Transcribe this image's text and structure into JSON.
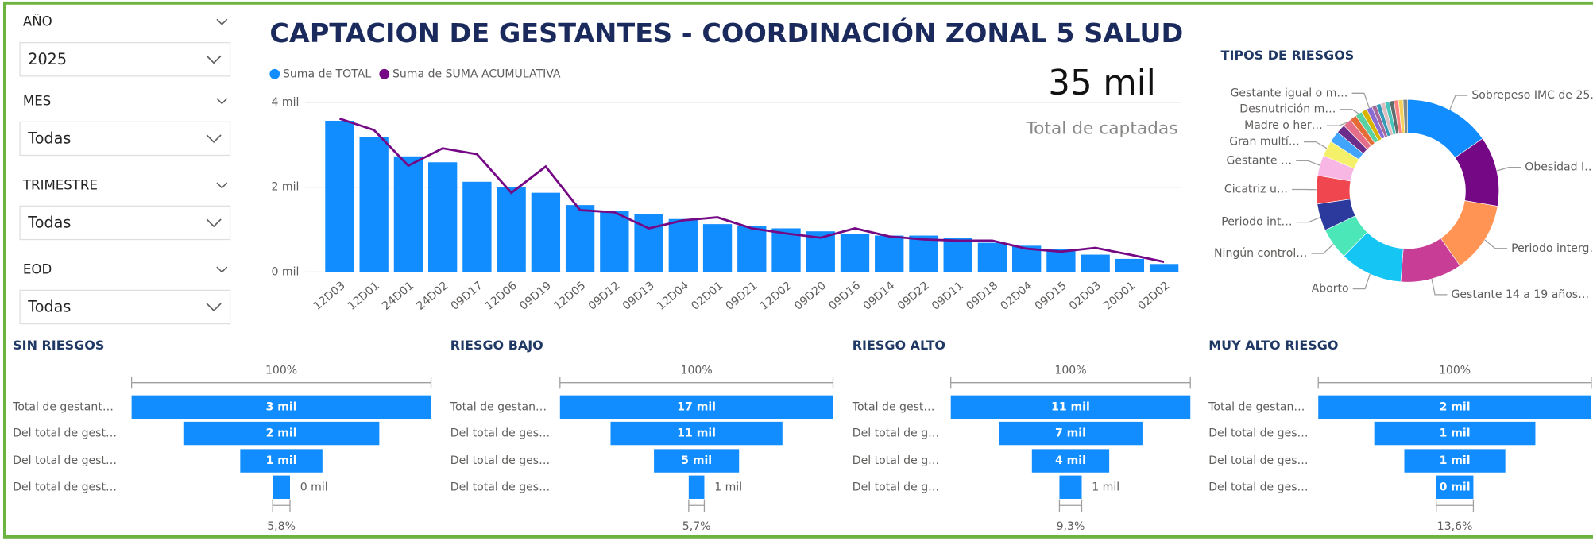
{
  "title": "CAPTACION DE GESTANTES - COORDINACIÓN ZONAL 5 SALUD",
  "slicers": [
    {
      "label": "AÑO",
      "value": "2025"
    },
    {
      "label": "MES",
      "value": "Todas"
    },
    {
      "label": "TRIMESTRE",
      "value": "Todas"
    },
    {
      "label": "EOD",
      "value": "Todas"
    }
  ],
  "kpi": {
    "value": "35 mil",
    "label": "Total de captadas"
  },
  "chart_data": [
    {
      "type": "bar",
      "categories": [
        "12D03",
        "12D01",
        "24D01",
        "24D02",
        "09D17",
        "12D06",
        "09D19",
        "12D05",
        "09D12",
        "09D13",
        "12D04",
        "02D01",
        "09D21",
        "12D02",
        "09D20",
        "09D16",
        "09D14",
        "09D22",
        "09D11",
        "09D18",
        "02D04",
        "09D15",
        "02D03",
        "20D01",
        "02D02"
      ],
      "series": [
        {
          "name": "Suma de TOTAL",
          "color": "#118DFF",
          "values": [
            3570,
            3190,
            2730,
            2590,
            2130,
            2010,
            1870,
            1580,
            1440,
            1370,
            1250,
            1130,
            1080,
            1030,
            960,
            890,
            860,
            860,
            810,
            690,
            620,
            550,
            410,
            310,
            190
          ]
        },
        {
          "name": "Suma de SUMA ACUMULATIVA",
          "color": "#750985",
          "type": "line",
          "values": [
            3620,
            3350,
            2510,
            2920,
            2780,
            1870,
            2490,
            1460,
            1410,
            1030,
            1220,
            1290,
            1030,
            910,
            810,
            1030,
            840,
            770,
            740,
            740,
            550,
            480,
            570,
            410,
            240
          ]
        }
      ],
      "ylim": [
        0,
        4000
      ],
      "yticks": [
        {
          "value": 0,
          "label": "0 mil"
        },
        {
          "value": 2000,
          "label": "2 mil"
        },
        {
          "value": 4000,
          "label": "4 mil"
        }
      ],
      "grid": true
    },
    {
      "type": "pie",
      "donut": true,
      "title": "TIPOS DE RIESGOS",
      "categories": [
        "Sobrepeso IMC de 25…",
        "Obesidad I…",
        "Periodo interg…",
        "Gestante 14 a 19 años…",
        "Aborto",
        "Ningún control…",
        "Periodo int…",
        "Cicatriz u…",
        "Gestante …",
        "Gran multí…",
        null,
        null,
        "Madre o her…",
        null,
        "Desnutrición m…",
        null,
        "Gestante igual o m…",
        null,
        null,
        null,
        null,
        null,
        null,
        null,
        null
      ],
      "values": [
        15.3,
        12.4,
        12.6,
        10.9,
        11.1,
        5.6,
        4.8,
        5.0,
        3.6,
        2.8,
        2.0,
        1.6,
        1.5,
        1.2,
        1.2,
        1.0,
        1.0,
        0.8,
        0.8,
        0.8,
        0.8,
        0.8,
        0.8,
        0.8,
        0.8
      ],
      "colors": [
        "#118DFF",
        "#750985",
        "#FF9455",
        "#C83D95",
        "#15C6F4",
        "#4BE7B8",
        "#2B3A9C",
        "#F0464F",
        "#F7B6E4",
        "#F5F06A",
        "#41A4FF",
        "#6B2C8A",
        "#E46E8A",
        "#E66C37",
        "#5AD1A3",
        "#D9B300",
        "#8A6AD3",
        "#A66999",
        "#3599B8",
        "#DFBFBF",
        "#4AC5BB",
        "#5F6B6D",
        "#FB8281",
        "#F4D25A",
        "#7F898A"
      ]
    },
    {
      "type": "funnel",
      "title": "SIN RIESGOS",
      "color": "#118DFF",
      "categories": [
        "Total de gestant…",
        "Del total de gest…",
        "Del total de gest…",
        "Del total de gest…"
      ],
      "values": [
        2950,
        1930,
        810,
        171
      ],
      "value_labels": [
        "3 mil",
        "2 mil",
        "1 mil",
        "0 mil"
      ],
      "percent_labels": [
        "100%",
        "5,8%"
      ]
    },
    {
      "type": "funnel",
      "title": "RIESGO BAJO",
      "color": "#118DFF",
      "categories": [
        "Total de gestan…",
        "Del total de ges…",
        "Del total de ges…",
        "Del total de ges…"
      ],
      "values": [
        17000,
        10700,
        5300,
        970
      ],
      "value_labels": [
        "17 mil",
        "11 mil",
        "5 mil",
        "1 mil"
      ],
      "percent_labels": [
        "100%",
        "5,7%"
      ]
    },
    {
      "type": "funnel",
      "title": "RIESGO ALTO",
      "color": "#118DFF",
      "categories": [
        "Total de gest…",
        "Del total de g…",
        "Del total de g…",
        "Del total de g…"
      ],
      "values": [
        11000,
        6600,
        3550,
        1023
      ],
      "value_labels": [
        "11 mil",
        "7 mil",
        "4 mil",
        "1 mil"
      ],
      "percent_labels": [
        "100%",
        "9,3%"
      ]
    },
    {
      "type": "funnel",
      "title": "MUY ALTO RIESGO",
      "color": "#118DFF",
      "categories": [
        "Total de gestan…",
        "Del total de ges…",
        "Del total de ges…",
        "Del total de ges…"
      ],
      "values": [
        2000,
        1180,
        740,
        272
      ],
      "value_labels": [
        "2 mil",
        "1 mil",
        "1 mil",
        "0 mil"
      ],
      "percent_labels": [
        "100%",
        "13,6%"
      ]
    }
  ]
}
